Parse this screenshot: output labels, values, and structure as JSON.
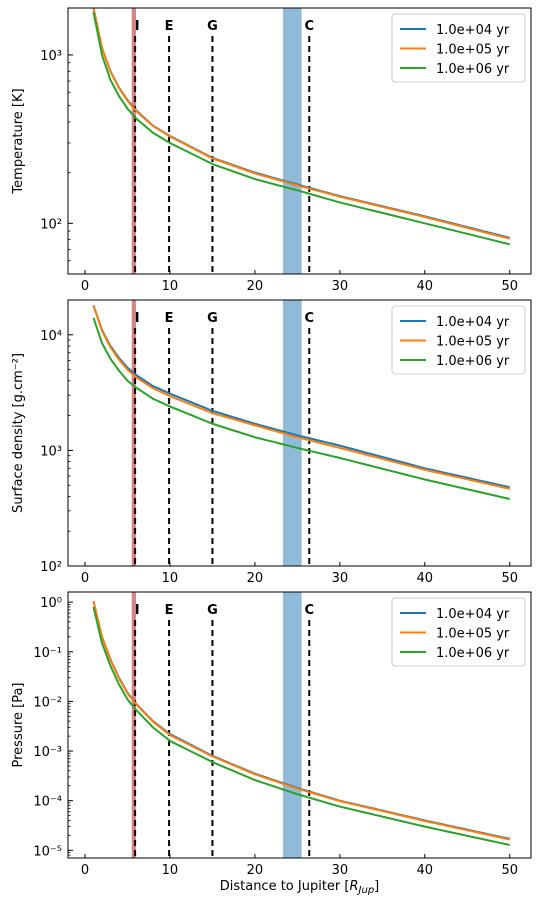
{
  "chart_data": [
    {
      "type": "line",
      "ylabel": "Temperature [K]",
      "xlabel": "",
      "yscale": "log",
      "xlim": [
        -2,
        52.5
      ],
      "ylim": [
        50,
        1900
      ],
      "xticks": [
        0,
        10,
        20,
        30,
        40,
        50
      ],
      "xtick_labels": [
        "0",
        "10",
        "20",
        "30",
        "40",
        "50"
      ],
      "yticks": [
        100,
        1000
      ],
      "ytick_labels": [
        "10²",
        "10³"
      ],
      "legend_position": "top-right",
      "markers": [
        {
          "label": "I",
          "x": 5.9
        },
        {
          "label": "E",
          "x": 9.9
        },
        {
          "label": "G",
          "x": 15.0
        },
        {
          "label": "C",
          "x": 26.4
        }
      ],
      "bands": [
        {
          "x_range": [
            5.5,
            6.0
          ],
          "color": "#c44e52"
        },
        {
          "x_range": [
            23.3,
            25.5
          ],
          "color": "#1f77b4"
        }
      ],
      "x": [
        1,
        2,
        3,
        4,
        5,
        6,
        8,
        10,
        15,
        20,
        25,
        30,
        40,
        50
      ],
      "series": [
        {
          "name": "1.0e+04 yr",
          "color": "#1f77b4",
          "values": [
            1900,
            1100,
            800,
            640,
            540,
            470,
            380,
            330,
            245,
            200,
            170,
            145,
            110,
            82
          ]
        },
        {
          "name": "1.0e+05 yr",
          "color": "#ff7f0e",
          "values": [
            1900,
            1100,
            795,
            635,
            535,
            465,
            378,
            328,
            243,
            198,
            168,
            144,
            109,
            81
          ]
        },
        {
          "name": "1.0e+06 yr",
          "color": "#2ca02c",
          "values": [
            1800,
            1000,
            710,
            570,
            480,
            420,
            345,
            300,
            225,
            183,
            157,
            133,
            100,
            75
          ]
        }
      ]
    },
    {
      "type": "line",
      "ylabel": "Surface density [g.cm⁻²]",
      "xlabel": "",
      "yscale": "log",
      "xlim": [
        -2,
        52.5
      ],
      "ylim": [
        100,
        20000
      ],
      "xticks": [
        0,
        10,
        20,
        30,
        40,
        50
      ],
      "xtick_labels": [
        "0",
        "10",
        "20",
        "30",
        "40",
        "50"
      ],
      "yticks": [
        100,
        1000,
        10000
      ],
      "ytick_labels": [
        "10²",
        "10³",
        "10⁴"
      ],
      "legend_position": "top-right",
      "markers": [
        {
          "label": "I",
          "x": 5.9
        },
        {
          "label": "E",
          "x": 9.9
        },
        {
          "label": "G",
          "x": 15.0
        },
        {
          "label": "C",
          "x": 26.4
        }
      ],
      "bands": [
        {
          "x_range": [
            5.5,
            6.0
          ],
          "color": "#c44e52"
        },
        {
          "x_range": [
            23.3,
            25.5
          ],
          "color": "#1f77b4"
        }
      ],
      "x": [
        1,
        2,
        3,
        4,
        5,
        6,
        8,
        10,
        15,
        20,
        25,
        30,
        40,
        50
      ],
      "series": [
        {
          "name": "1.0e+04 yr",
          "color": "#1f77b4",
          "values": [
            18000,
            11000,
            8000,
            6300,
            5200,
            4500,
            3600,
            3100,
            2200,
            1700,
            1350,
            1100,
            700,
            480
          ]
        },
        {
          "name": "1.0e+05 yr",
          "color": "#ff7f0e",
          "values": [
            18000,
            10800,
            7800,
            6100,
            5000,
            4300,
            3450,
            2950,
            2100,
            1650,
            1300,
            1050,
            680,
            465
          ]
        },
        {
          "name": "1.0e+06 yr",
          "color": "#2ca02c",
          "values": [
            14000,
            8500,
            6200,
            4900,
            4000,
            3500,
            2800,
            2400,
            1700,
            1300,
            1050,
            860,
            560,
            380
          ]
        }
      ]
    },
    {
      "type": "line",
      "ylabel": "Pressure [Pa]",
      "xlabel": "Distance to Jupiter [R_Jup]",
      "yscale": "log",
      "xlim": [
        -2,
        52.5
      ],
      "ylim": [
        7e-06,
        1.6
      ],
      "xticks": [
        0,
        10,
        20,
        30,
        40,
        50
      ],
      "xtick_labels": [
        "0",
        "10",
        "20",
        "30",
        "40",
        "50"
      ],
      "yticks": [
        1e-05,
        0.0001,
        0.001,
        0.01,
        0.1,
        1
      ],
      "ytick_labels": [
        "10⁻⁵",
        "10⁻⁴",
        "10⁻³",
        "10⁻²",
        "10⁻¹",
        "10⁰"
      ],
      "legend_position": "top-right",
      "markers": [
        {
          "label": "I",
          "x": 5.9
        },
        {
          "label": "E",
          "x": 9.9
        },
        {
          "label": "G",
          "x": 15.0
        },
        {
          "label": "C",
          "x": 26.4
        }
      ],
      "bands": [
        {
          "x_range": [
            5.5,
            6.0
          ],
          "color": "#c44e52"
        },
        {
          "x_range": [
            23.3,
            25.5
          ],
          "color": "#1f77b4"
        }
      ],
      "x": [
        1,
        2,
        3,
        4,
        5,
        6,
        8,
        10,
        15,
        20,
        25,
        30,
        40,
        50
      ],
      "series": [
        {
          "name": "1.0e+04 yr",
          "color": "#1f77b4",
          "values": [
            1.05,
            0.2,
            0.07,
            0.03,
            0.015,
            0.009,
            0.004,
            0.0022,
            0.0008,
            0.00035,
            0.00018,
            0.0001,
            4e-05,
            1.7e-05
          ]
        },
        {
          "name": "1.0e+05 yr",
          "color": "#ff7f0e",
          "values": [
            1.05,
            0.2,
            0.068,
            0.029,
            0.0145,
            0.0088,
            0.0039,
            0.0021,
            0.00078,
            0.00034,
            0.000175,
            9.8e-05,
            3.9e-05,
            1.65e-05
          ]
        },
        {
          "name": "1.0e+06 yr",
          "color": "#2ca02c",
          "values": [
            0.8,
            0.15,
            0.052,
            0.022,
            0.011,
            0.0068,
            0.003,
            0.0016,
            0.0006,
            0.00026,
            0.000135,
            7.6e-05,
            3e-05,
            1.28e-05
          ]
        }
      ]
    }
  ]
}
